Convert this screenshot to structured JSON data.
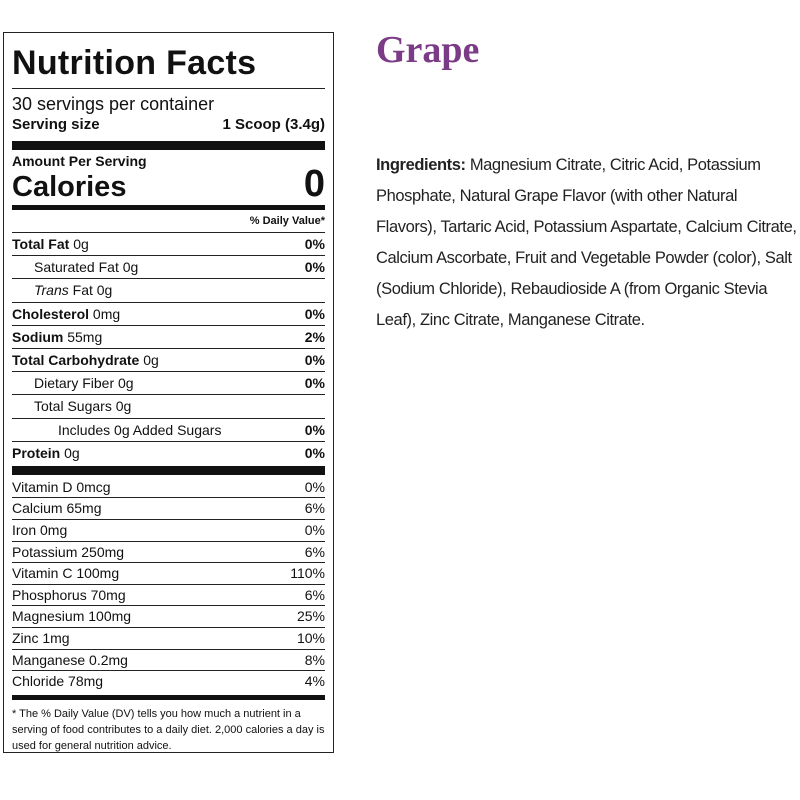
{
  "label": {
    "title": "Nutrition Facts",
    "servings": "30 servings per container",
    "serving_size_label": "Serving size",
    "serving_size_value": "1 Scoop (3.4g)",
    "amount_per_serving": "Amount Per Serving",
    "calories_label": "Calories",
    "calories_value": "0",
    "dv_header": "% Daily Value*",
    "nutrients": [
      {
        "name": "Total Fat",
        "amount": "0g",
        "dv": "0%"
      },
      {
        "name": "Saturated Fat 0g",
        "dv": "0%"
      },
      {
        "name": "Trans",
        "amount": "Fat 0g"
      },
      {
        "name": "Cholesterol",
        "amount": "0mg",
        "dv": "0%"
      },
      {
        "name": "Sodium",
        "amount": "55mg",
        "dv": "2%"
      },
      {
        "name": "Total Carbohydrate",
        "amount": "0g",
        "dv": "0%"
      },
      {
        "name": "Dietary Fiber 0g",
        "dv": "0%"
      },
      {
        "name": "Total Sugars 0g"
      },
      {
        "name": "Includes 0g Added Sugars",
        "dv": "0%"
      },
      {
        "name": "Protein",
        "amount": "0g",
        "dv": "0%"
      }
    ],
    "vitamins": [
      {
        "name": "Vitamin D 0mcg",
        "dv": "0%"
      },
      {
        "name": "Calcium 65mg",
        "dv": "6%"
      },
      {
        "name": "Iron 0mg",
        "dv": "0%"
      },
      {
        "name": "Potassium 250mg",
        "dv": "6%"
      },
      {
        "name": "Vitamin C 100mg",
        "dv": "110%"
      },
      {
        "name": "Phosphorus 70mg",
        "dv": "6%"
      },
      {
        "name": "Magnesium 100mg",
        "dv": "25%"
      },
      {
        "name": "Zinc 1mg",
        "dv": "10%"
      },
      {
        "name": "Manganese 0.2mg",
        "dv": "8%"
      },
      {
        "name": "Chloride 78mg",
        "dv": "4%"
      }
    ],
    "footnote": "* The % Daily Value (DV) tells you how much a nutrient in a serving of food contributes to a daily diet. 2,000 calories a day is used for general nutrition advice."
  },
  "product": {
    "flavor": "Grape",
    "ingredients_label": "Ingredients:",
    "ingredients": "Magnesium Citrate, Citric Acid, Potassium Phosphate, Natural Grape Flavor (with other Natural Flavors), Tartaric Acid, Potassium Aspartate, Calcium Citrate, Calcium Ascorbate, Fruit and Vegetable Powder (color), Salt (Sodium Chloride), Rebaudioside A (from Organic Stevia Leaf), Zinc Citrate, Manganese Citrate."
  }
}
